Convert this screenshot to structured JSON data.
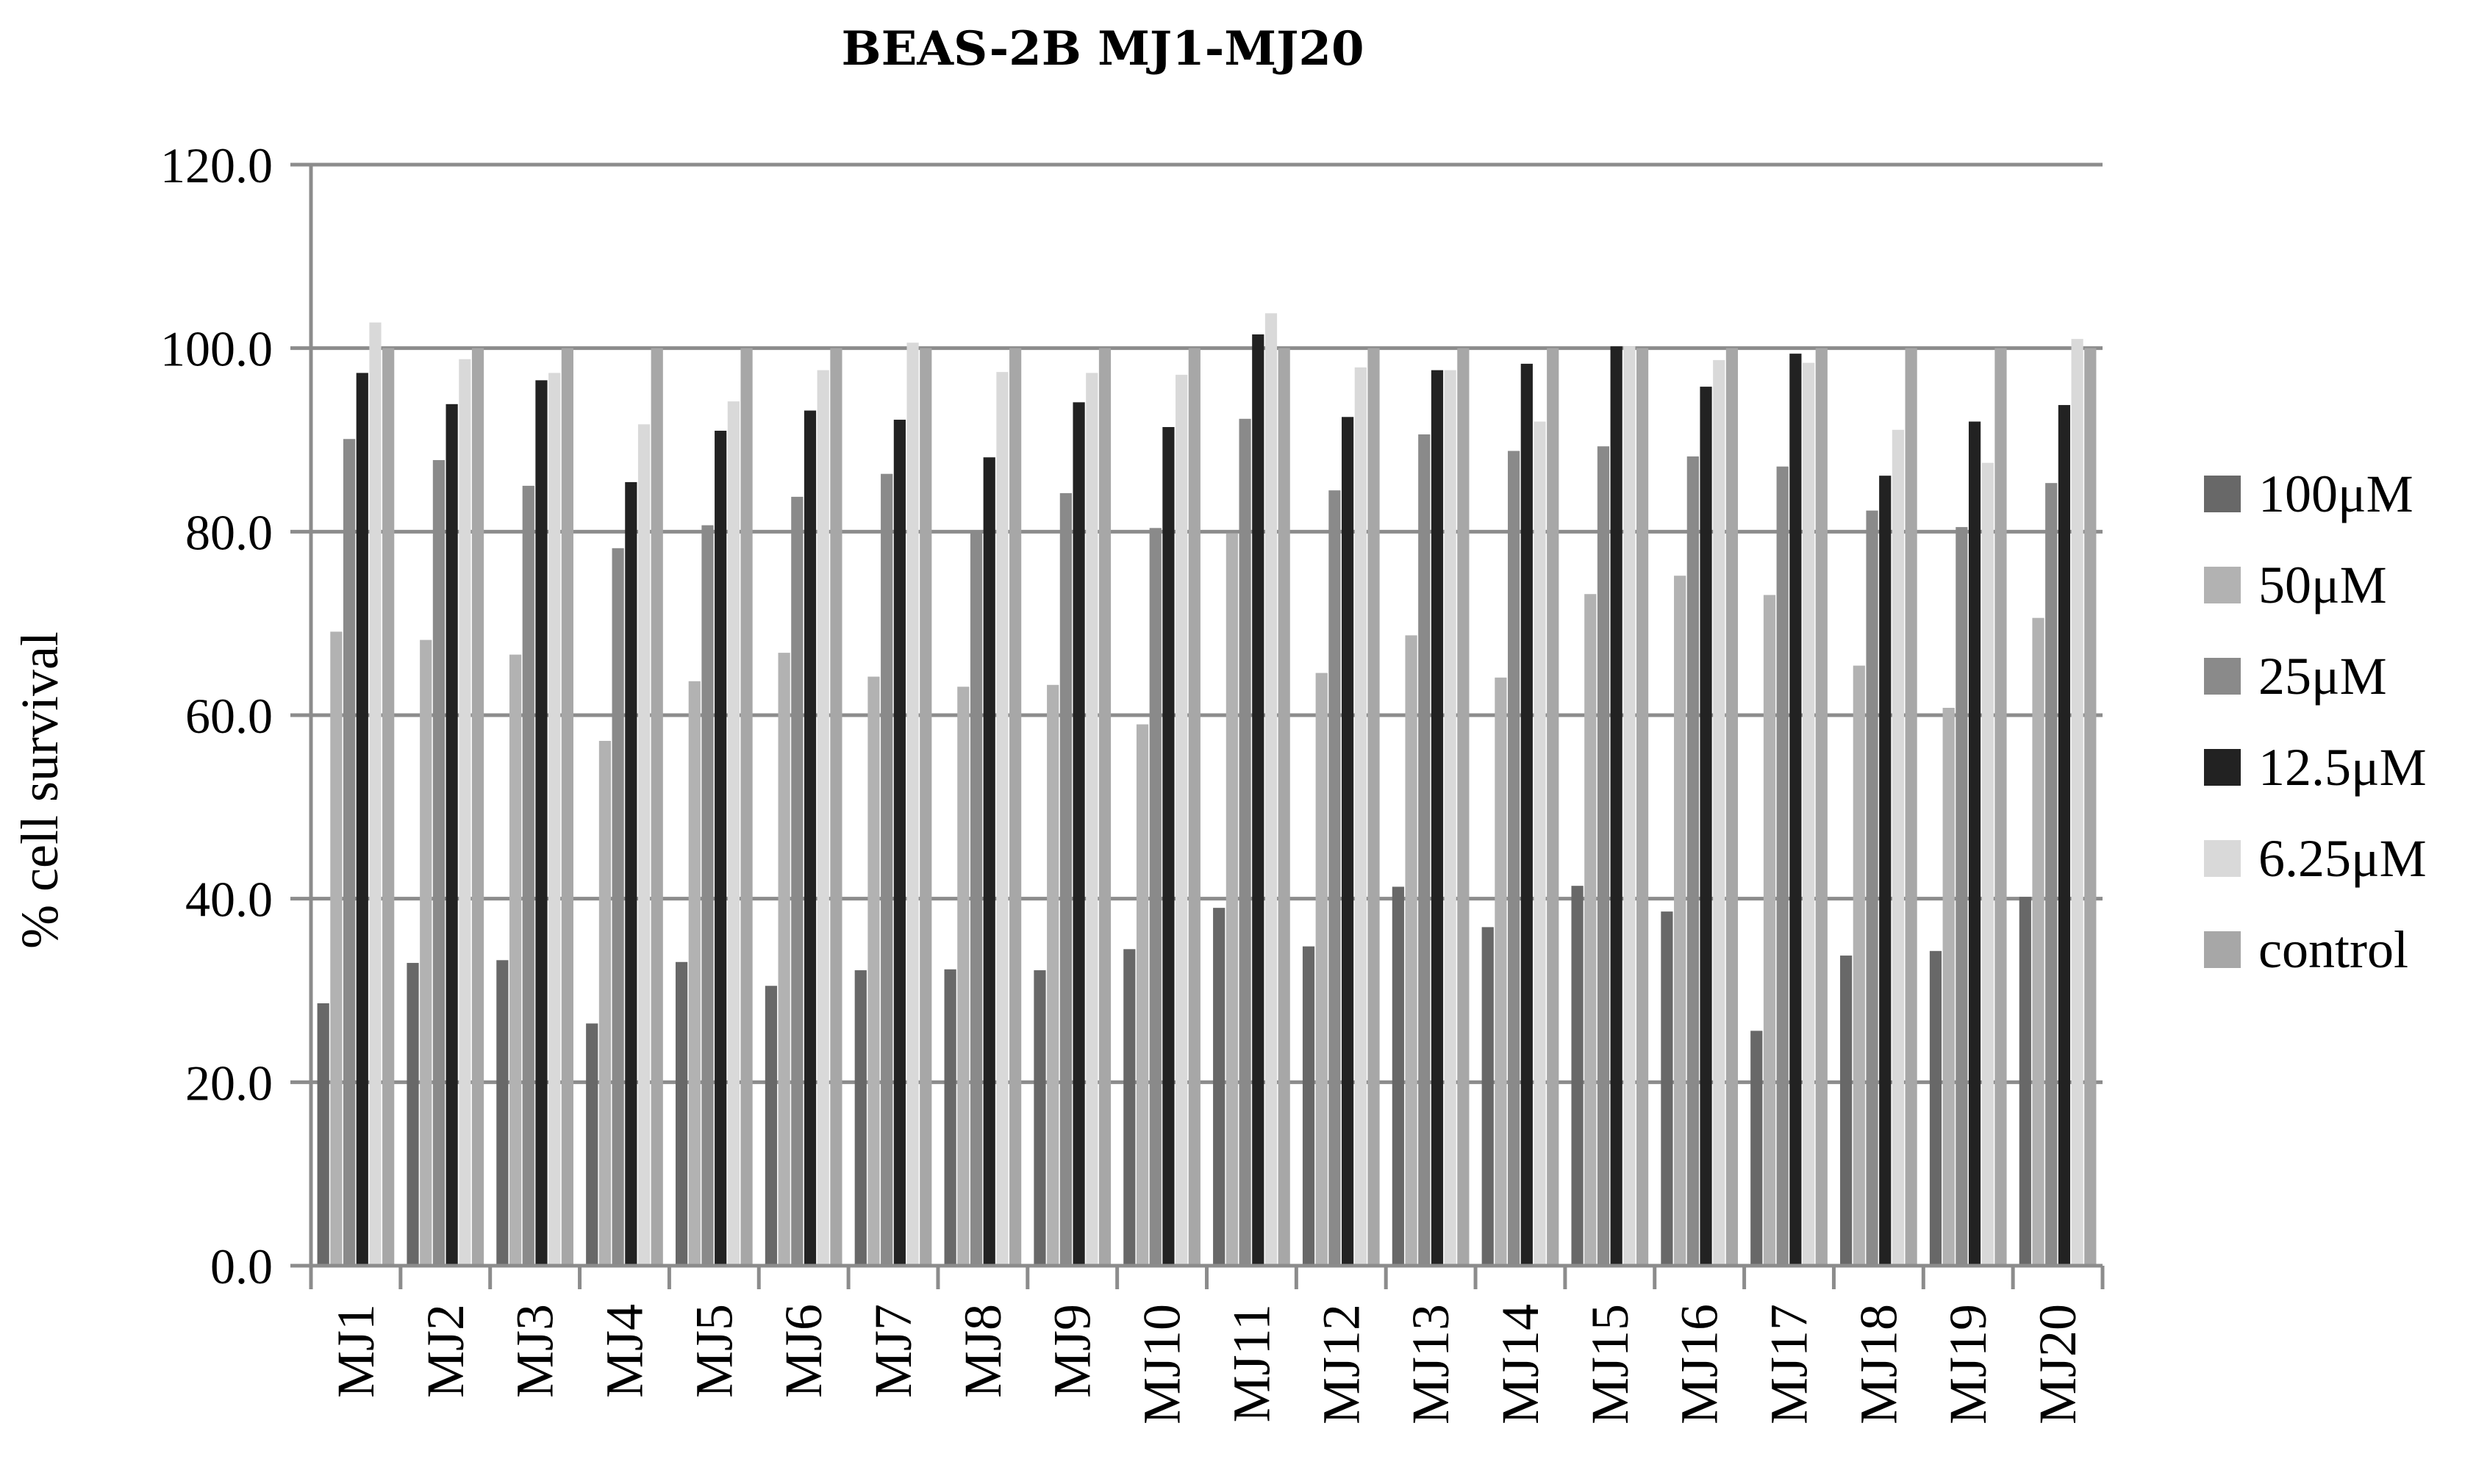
{
  "chart_data": {
    "type": "bar",
    "title": "BEAS-2B MJ1-MJ20",
    "xlabel": "",
    "ylabel": "% cell survival",
    "ylim": [
      0,
      120
    ],
    "yticks": [
      "0.0",
      "20.0",
      "40.0",
      "60.0",
      "80.0",
      "100.0",
      "120.0"
    ],
    "grid": "horizontal",
    "legend_position": "right",
    "categories": [
      "MJ1",
      "MJ2",
      "MJ3",
      "MJ4",
      "MJ5",
      "MJ6",
      "MJ7",
      "MJ8",
      "MJ9",
      "MJ10",
      "MJ11",
      "MJ12",
      "MJ13",
      "MJ14",
      "MJ15",
      "MJ16",
      "MJ17",
      "MJ18",
      "MJ19",
      "MJ20"
    ],
    "series": [
      {
        "name": "100μM",
        "color": "#686868",
        "values": [
          28.6,
          33.0,
          33.3,
          26.4,
          33.1,
          30.5,
          32.2,
          32.3,
          32.2,
          34.5,
          39.0,
          34.8,
          41.3,
          36.9,
          41.4,
          38.6,
          25.6,
          33.8,
          34.3,
          40.2
        ]
      },
      {
        "name": "50μM",
        "color": "#b2b2b2",
        "values": [
          69.1,
          68.2,
          66.6,
          57.2,
          63.7,
          66.8,
          64.2,
          63.1,
          63.3,
          59.0,
          79.8,
          64.6,
          68.7,
          64.1,
          73.2,
          75.2,
          73.1,
          65.4,
          60.8,
          70.6
        ]
      },
      {
        "name": "25μM",
        "color": "#8a8a8a",
        "values": [
          90.1,
          87.8,
          85.0,
          78.2,
          80.7,
          83.8,
          86.3,
          80.1,
          84.2,
          80.4,
          92.3,
          84.5,
          90.6,
          88.8,
          89.3,
          88.2,
          87.1,
          82.3,
          80.5,
          85.3
        ]
      },
      {
        "name": "12.5μM",
        "color": "#222222",
        "values": [
          97.3,
          93.9,
          96.5,
          85.4,
          91.0,
          93.2,
          92.2,
          88.1,
          94.1,
          91.4,
          101.5,
          92.5,
          97.6,
          98.3,
          100.2,
          95.8,
          99.4,
          86.1,
          92.0,
          93.8
        ]
      },
      {
        "name": "6.25μM",
        "color": "#d9d9d9",
        "values": [
          102.8,
          98.8,
          97.3,
          91.7,
          94.2,
          97.6,
          100.6,
          97.4,
          97.3,
          97.1,
          103.8,
          97.9,
          97.6,
          92.0,
          100.2,
          98.7,
          98.4,
          91.1,
          87.5,
          101.0
        ]
      },
      {
        "name": "control",
        "color": "#a7a7a7",
        "values": [
          100.0,
          100.0,
          100.0,
          100.0,
          100.0,
          100.0,
          100.0,
          100.0,
          100.0,
          100.0,
          100.0,
          100.0,
          100.0,
          100.0,
          100.0,
          100.0,
          100.0,
          100.0,
          100.0,
          100.0
        ]
      }
    ]
  }
}
